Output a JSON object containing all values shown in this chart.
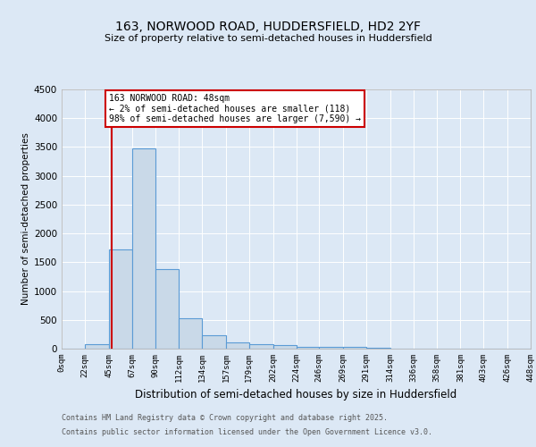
{
  "title1": "163, NORWOOD ROAD, HUDDERSFIELD, HD2 2YF",
  "title2": "Size of property relative to semi-detached houses in Huddersfield",
  "xlabel": "Distribution of semi-detached houses by size in Huddersfield",
  "ylabel": "Number of semi-detached properties",
  "bin_edges": [
    0,
    22,
    45,
    67,
    90,
    112,
    134,
    157,
    179,
    202,
    224,
    246,
    269,
    291,
    314,
    336,
    358,
    381,
    403,
    426,
    448
  ],
  "bar_heights": [
    0,
    80,
    1720,
    3480,
    1380,
    530,
    230,
    115,
    75,
    55,
    35,
    35,
    30,
    15,
    5,
    3,
    2,
    1,
    1,
    0
  ],
  "bar_facecolor": "#c9d9e8",
  "bar_edgecolor": "#5b9bd5",
  "ylim": [
    0,
    4500
  ],
  "yticks": [
    0,
    500,
    1000,
    1500,
    2000,
    2500,
    3000,
    3500,
    4000,
    4500
  ],
  "property_size": 48,
  "vline_color": "#cc0000",
  "annotation_text": "163 NORWOOD ROAD: 48sqm\n← 2% of semi-detached houses are smaller (118)\n98% of semi-detached houses are larger (7,590) →",
  "annotation_box_color": "#cc0000",
  "annotation_facecolor": "white",
  "background_color": "#dce8f5",
  "plot_bg_color": "#dce8f5",
  "footer1": "Contains HM Land Registry data © Crown copyright and database right 2025.",
  "footer2": "Contains public sector information licensed under the Open Government Licence v3.0.",
  "tick_labels": [
    "0sqm",
    "22sqm",
    "45sqm",
    "67sqm",
    "90sqm",
    "112sqm",
    "134sqm",
    "157sqm",
    "179sqm",
    "202sqm",
    "224sqm",
    "246sqm",
    "269sqm",
    "291sqm",
    "314sqm",
    "336sqm",
    "358sqm",
    "381sqm",
    "403sqm",
    "426sqm",
    "448sqm"
  ]
}
